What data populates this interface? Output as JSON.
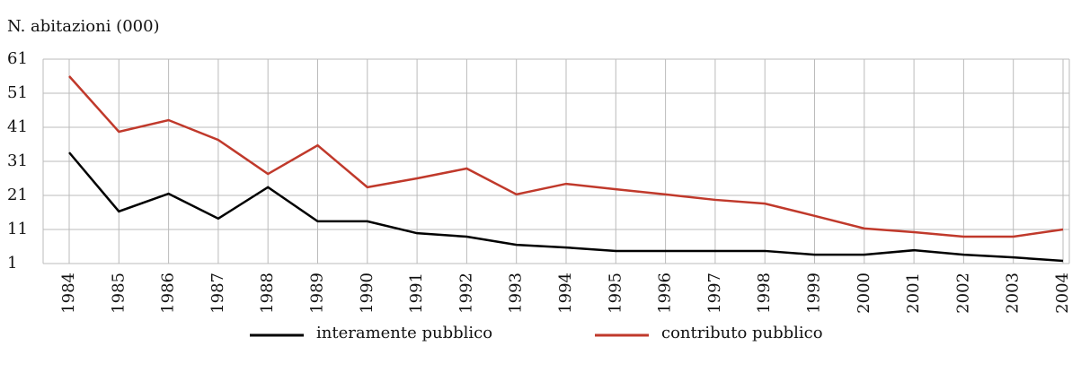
{
  "chart_data": {
    "type": "line",
    "y_label": "N. abitazioni (000)",
    "categories": [
      "1984",
      "1985",
      "1986",
      "1987",
      "1988",
      "1989",
      "1990",
      "1991",
      "1992",
      "1993",
      "1994",
      "1995",
      "1996",
      "1997",
      "1998",
      "1999",
      "2000",
      "2001",
      "2002",
      "2003",
      "2004"
    ],
    "series": [
      {
        "name": "interamente pubblico",
        "color": "#000000",
        "values": [
          33.6,
          16.3,
          21.5,
          14.2,
          23.4,
          13.4,
          13.4,
          9.9,
          8.9,
          6.5,
          5.7,
          4.7,
          4.7,
          4.7,
          4.7,
          3.6,
          3.6,
          4.9,
          3.6,
          2.8,
          1.8
        ]
      },
      {
        "name": "contributo pubblico",
        "color": "#c0392b",
        "values": [
          56,
          39.7,
          43.1,
          37.3,
          27.3,
          35.7,
          23.4,
          26,
          28.9,
          21.3,
          24.4,
          22.8,
          21.3,
          19.7,
          18.6,
          15,
          11.3,
          10.2,
          8.9,
          8.9,
          11
        ]
      }
    ],
    "ylim": [
      1,
      61
    ],
    "yticks": [
      1,
      11,
      21,
      31,
      41,
      51,
      61
    ],
    "grid": true
  }
}
